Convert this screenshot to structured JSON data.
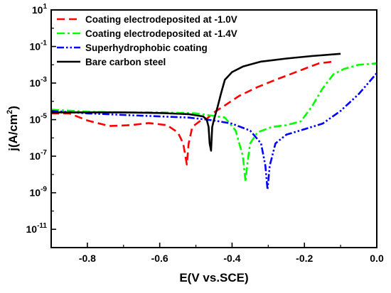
{
  "chart_data": {
    "type": "line",
    "xlabel": "E(V vs.SCE)",
    "ylabel": "j(A/cm²)",
    "ylabel_parts": {
      "base": "j(A/cm",
      "sup": "2",
      "tail": ")"
    },
    "x_range": [
      -0.9,
      0.0
    ],
    "y_range_log10": [
      -12,
      1
    ],
    "y_scale": "log",
    "x_ticks": [
      {
        "value": -0.8,
        "label": "-0.8"
      },
      {
        "value": -0.6,
        "label": "-0.6"
      },
      {
        "value": -0.4,
        "label": "-0.4"
      },
      {
        "value": -0.2,
        "label": "-0.2"
      },
      {
        "value": 0.0,
        "label": "0.0"
      }
    ],
    "y_ticks": [
      {
        "exp": 1,
        "base": "10",
        "sup": "1"
      },
      {
        "exp": -1,
        "base": "10",
        "sup": "-1"
      },
      {
        "exp": -3,
        "base": "10",
        "sup": "-3"
      },
      {
        "exp": -5,
        "base": "10",
        "sup": "-5"
      },
      {
        "exp": -7,
        "base": "10",
        "sup": "-7"
      },
      {
        "exp": -9,
        "base": "10",
        "sup": "-9"
      },
      {
        "exp": -11,
        "base": "10",
        "sup": "-11"
      }
    ],
    "grid": false,
    "legend_position": "top-left",
    "series": [
      {
        "name": "Coating electrodeposited at -1.0V",
        "color": "#ff0000",
        "dash": "dash",
        "points": [
          [
            -0.9,
            2.2e-05
          ],
          [
            -0.85,
            2.2e-05
          ],
          [
            -0.8,
            9e-06
          ],
          [
            -0.74,
            4.5e-06
          ],
          [
            -0.68,
            5e-06
          ],
          [
            -0.63,
            6.5e-06
          ],
          [
            -0.58,
            5e-06
          ],
          [
            -0.55,
            2e-06
          ],
          [
            -0.535,
            5e-07
          ],
          [
            -0.525,
            3.5e-08
          ],
          [
            -0.52,
            5e-07
          ],
          [
            -0.51,
            4e-06
          ],
          [
            -0.49,
            8e-06
          ],
          [
            -0.47,
            1.1e-05
          ],
          [
            -0.45,
            2.5e-05
          ],
          [
            -0.42,
            6e-05
          ],
          [
            -0.38,
            0.0002
          ],
          [
            -0.33,
            0.0006
          ],
          [
            -0.28,
            0.0015
          ],
          [
            -0.24,
            0.003
          ],
          [
            -0.2,
            0.006
          ],
          [
            -0.16,
            0.012
          ],
          [
            -0.12,
            0.015
          ]
        ]
      },
      {
        "name": "Coating electrodeposited at -1.4V",
        "color": "#00ff00",
        "dash": "dashdot",
        "points": [
          [
            -0.9,
            3.5e-05
          ],
          [
            -0.8,
            2.7e-05
          ],
          [
            -0.7,
            2.5e-05
          ],
          [
            -0.6,
            2.5e-05
          ],
          [
            -0.5,
            2.2e-05
          ],
          [
            -0.42,
            1.3e-05
          ],
          [
            -0.39,
            2.5e-06
          ],
          [
            -0.37,
            1e-07
          ],
          [
            -0.363,
            4e-09
          ],
          [
            -0.357,
            5e-08
          ],
          [
            -0.35,
            5e-07
          ],
          [
            -0.33,
            2e-06
          ],
          [
            -0.29,
            4e-06
          ],
          [
            -0.25,
            5e-06
          ],
          [
            -0.21,
            8e-06
          ],
          [
            -0.18,
            5e-05
          ],
          [
            -0.15,
            0.0005
          ],
          [
            -0.12,
            0.003
          ],
          [
            -0.09,
            0.006
          ],
          [
            -0.05,
            0.01
          ],
          [
            0.0,
            0.012
          ]
        ]
      },
      {
        "name": "Superhydrophobic coating",
        "color": "#0000ff",
        "dash": "dashdotdot",
        "points": [
          [
            -0.9,
            3e-05
          ],
          [
            -0.8,
            2.2e-05
          ],
          [
            -0.7,
            1.8e-05
          ],
          [
            -0.6,
            1.5e-05
          ],
          [
            -0.52,
            1.3e-05
          ],
          [
            -0.45,
            9e-06
          ],
          [
            -0.4,
            6e-06
          ],
          [
            -0.35,
            2.5e-06
          ],
          [
            -0.32,
            5e-07
          ],
          [
            -0.308,
            3e-08
          ],
          [
            -0.302,
            1.5e-09
          ],
          [
            -0.296,
            3e-08
          ],
          [
            -0.28,
            5e-07
          ],
          [
            -0.25,
            1.5e-06
          ],
          [
            -0.2,
            3e-06
          ],
          [
            -0.15,
            6e-06
          ],
          [
            -0.1,
            3e-05
          ],
          [
            -0.05,
            0.00025
          ],
          [
            0.0,
            0.0035
          ]
        ]
      },
      {
        "name": "Bare carbon steel",
        "color": "#000000",
        "dash": "solid",
        "points": [
          [
            -0.9,
            2.5e-05
          ],
          [
            -0.8,
            2.5e-05
          ],
          [
            -0.7,
            2.5e-05
          ],
          [
            -0.6,
            2.3e-05
          ],
          [
            -0.52,
            2e-05
          ],
          [
            -0.48,
            1.5e-05
          ],
          [
            -0.47,
            1e-05
          ],
          [
            -0.465,
            4e-06
          ],
          [
            -0.462,
            5e-07
          ],
          [
            -0.458,
            2e-07
          ],
          [
            -0.455,
            4e-06
          ],
          [
            -0.45,
            1e-05
          ],
          [
            -0.44,
            5e-05
          ],
          [
            -0.43,
            0.0003
          ],
          [
            -0.42,
            0.0015
          ],
          [
            -0.4,
            0.004
          ],
          [
            -0.37,
            0.008
          ],
          [
            -0.32,
            0.015
          ],
          [
            -0.25,
            0.022
          ],
          [
            -0.18,
            0.03
          ],
          [
            -0.1,
            0.04
          ]
        ]
      }
    ]
  }
}
